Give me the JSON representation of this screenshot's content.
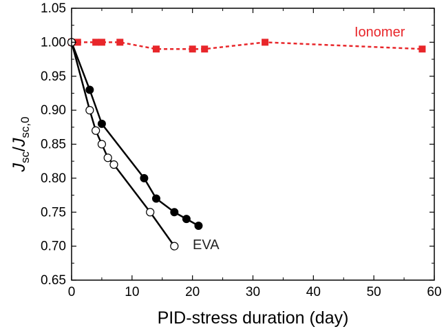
{
  "chart_data": {
    "type": "line",
    "xlabel": "PID-stress duration (day)",
    "ylabel_parts": {
      "numerator_main": "J",
      "numerator_sub": "sc",
      "slash": "/",
      "denominator_main": "J",
      "denominator_sub": "sc,0"
    },
    "xlim": [
      0,
      60
    ],
    "ylim": [
      0.65,
      1.05
    ],
    "x_ticks": [
      "0",
      "10",
      "20",
      "30",
      "40",
      "50",
      "60"
    ],
    "y_ticks": [
      "0.65",
      "0.70",
      "0.75",
      "0.80",
      "0.85",
      "0.90",
      "0.95",
      "1.00",
      "1.05"
    ],
    "grid": false,
    "series": [
      {
        "name": "Ionomer",
        "color": "#e8262a",
        "line_style": "dashed",
        "marker": "filled-square",
        "points": [
          [
            0,
            1.0
          ],
          [
            1,
            1.0
          ],
          [
            4,
            1.0
          ],
          [
            5,
            1.0
          ],
          [
            8,
            1.0
          ],
          [
            14,
            0.99
          ],
          [
            20,
            0.99
          ],
          [
            22,
            0.99
          ],
          [
            32,
            1.0
          ],
          [
            58,
            0.99
          ]
        ]
      },
      {
        "name": "EVA",
        "color": "#000000",
        "line_style": "solid",
        "marker": "filled-circle",
        "points": [
          [
            0,
            1.0
          ],
          [
            3,
            0.93
          ],
          [
            5,
            0.88
          ],
          [
            12,
            0.8
          ],
          [
            14,
            0.77
          ],
          [
            17,
            0.75
          ],
          [
            19,
            0.74
          ],
          [
            21,
            0.73
          ]
        ]
      },
      {
        "name": "",
        "color": "#000000",
        "line_style": "solid",
        "marker": "open-circle",
        "points": [
          [
            0,
            1.0
          ],
          [
            3,
            0.9
          ],
          [
            4,
            0.87
          ],
          [
            5,
            0.85
          ],
          [
            6,
            0.83
          ],
          [
            7,
            0.82
          ],
          [
            13,
            0.75
          ],
          [
            17,
            0.7
          ]
        ]
      }
    ]
  }
}
